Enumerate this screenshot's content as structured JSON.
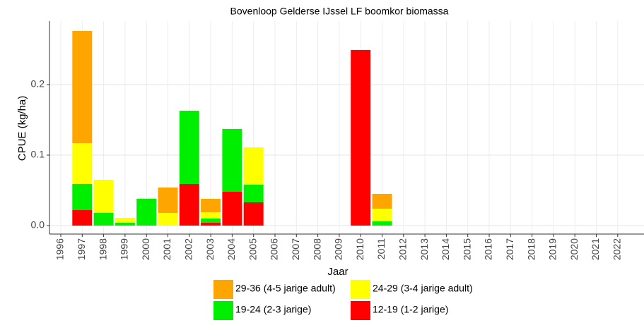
{
  "chart_data": {
    "type": "stacked_bar",
    "title": "Bovenloop Gelderse IJssel LF boomkor biomassa",
    "x_label": "Jaar",
    "y_label": "CPUE (kg/ha)",
    "categories": [
      "1996",
      "1997",
      "1998",
      "1999",
      "2000",
      "2001",
      "2002",
      "2003",
      "2004",
      "2005",
      "2006",
      "2007",
      "2008",
      "2009",
      "2010",
      "2011",
      "2012",
      "2013",
      "2014",
      "2015",
      "2016",
      "2017",
      "2018",
      "2019",
      "2020",
      "2021",
      "2022"
    ],
    "series": [
      {
        "name": "29-36 (4-5 jarige adult)",
        "color": "#ffa500",
        "values": [
          0,
          0.159,
          0,
          0,
          0,
          0.036,
          0,
          0.019,
          0,
          0,
          0,
          0,
          0,
          0,
          0,
          0.021,
          0,
          0,
          0,
          0,
          0,
          0,
          0,
          0,
          0,
          0,
          0
        ]
      },
      {
        "name": "24-29 (3-4 jarige adult)",
        "color": "#ffff00",
        "values": [
          0,
          0.058,
          0.047,
          0.007,
          0,
          0.018,
          0,
          0.009,
          0,
          0.053,
          0,
          0,
          0,
          0,
          0,
          0.018,
          0,
          0,
          0,
          0,
          0,
          0,
          0,
          0,
          0,
          0,
          0
        ]
      },
      {
        "name": "19-24 (2-3 jarige)",
        "color": "#00ee00",
        "values": [
          0,
          0.037,
          0.018,
          0.004,
          0.038,
          0,
          0.104,
          0.006,
          0.089,
          0.025,
          0,
          0,
          0,
          0,
          0,
          0.006,
          0,
          0,
          0,
          0,
          0,
          0,
          0,
          0,
          0,
          0,
          0
        ]
      },
      {
        "name": "12-19 (1-2 jarige)",
        "color": "#ff0000",
        "values": [
          0,
          0.022,
          0,
          0,
          0,
          0,
          0.059,
          0.004,
          0.048,
          0.033,
          0,
          0,
          0,
          0,
          0.249,
          0,
          0,
          0,
          0,
          0,
          0,
          0,
          0,
          0,
          0,
          0,
          0
        ]
      }
    ],
    "ylim": [
      -0.012,
      0.29
    ],
    "yticks": [
      {
        "value": 0,
        "label": "0.0"
      },
      0.1,
      0.2
    ],
    "grid": true
  }
}
